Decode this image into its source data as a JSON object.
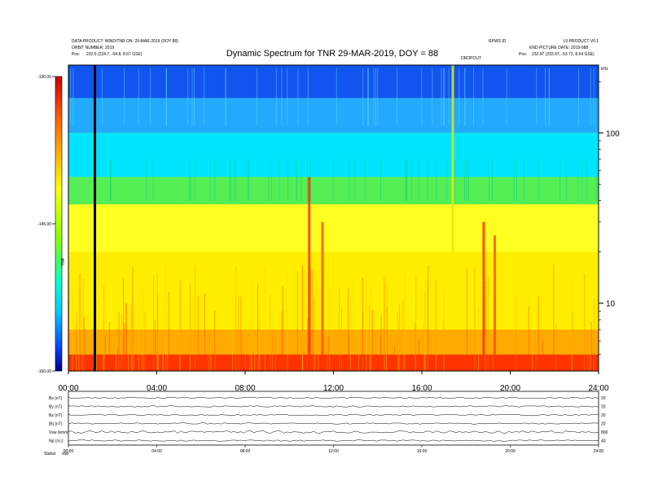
{
  "header": {
    "title": "Dynamic Spectrum for TNR 29-MAR-2019, DOY = 88",
    "left_line1": "DATA PRODUCT: WIND/TNR ON: 29-MAR-2019 (DOY 88)",
    "left_line2": "ORBIT NUMBER: 2019",
    "left_pos_label": "Pos:",
    "left_pos_value": "232.5 (224.7, -54.8, 8.67 GSE)",
    "right_line1": "RPWS ID",
    "right_line2": "L0 PRODUCT V0.1",
    "right_line3": "END PICTURE DATE: 2019-088",
    "right_pos_label": "Pos:",
    "right_pos_value": "232.97 (233.97, -53.72, 8.54 GSE)",
    "event_label": "DROPOUT",
    "khz_label": "kHz"
  },
  "chart_data": {
    "type": "heatmap",
    "title": "Dynamic Spectrum for TNR 29-MAR-2019, DOY = 88",
    "x_tick_labels": [
      "00:00",
      "04:00",
      "08:00",
      "12:00",
      "16:00",
      "20:00",
      "24:00"
    ],
    "x_ticks_hours": [
      0,
      4,
      8,
      12,
      16,
      20,
      24
    ],
    "xlim_hours": [
      0,
      24
    ],
    "y_scale": "log",
    "y_unit": "kHz",
    "y_tick_labels": [
      "10",
      "100"
    ],
    "y_ticks": [
      10,
      100
    ],
    "ylim": [
      4,
      250
    ],
    "colorbar": {
      "label": "TNR",
      "tick_labels": [
        "-130.00",
        "-145.00",
        "-160.00"
      ],
      "ticks": [
        -130,
        -145,
        -160
      ],
      "range": [
        -160,
        -130
      ],
      "colors": [
        "#0000aa",
        "#0044ff",
        "#00e0ff",
        "#00ff66",
        "#ffff00",
        "#ff9900",
        "#ff0000"
      ]
    },
    "background_bands": [
      {
        "f_low": 160,
        "f_high": 250,
        "level": -137,
        "color": "#1155ee"
      },
      {
        "f_low": 100,
        "f_high": 160,
        "level": -140,
        "color": "#22aaff"
      },
      {
        "f_low": 55,
        "f_high": 100,
        "level": -142,
        "color": "#00e5ff"
      },
      {
        "f_low": 38,
        "f_high": 55,
        "level": -145,
        "color": "#55ee55"
      },
      {
        "f_low": 20,
        "f_high": 38,
        "level": -148,
        "color": "#ffff22"
      },
      {
        "f_low": 7,
        "f_high": 20,
        "level": -150,
        "color": "#ffee00"
      },
      {
        "f_low": 5,
        "f_high": 7,
        "level": -152,
        "color": "#ffaa00"
      },
      {
        "f_low": 4,
        "f_high": 5,
        "level": -155,
        "color": "#ff3300"
      }
    ],
    "bursts": [
      {
        "hour": 10.9,
        "f_low": 5,
        "f_high": 55,
        "color": "#ff3300"
      },
      {
        "hour": 11.5,
        "f_low": 5,
        "f_high": 30,
        "color": "#ff5500"
      },
      {
        "hour": 17.4,
        "f_low": 20,
        "f_high": 250,
        "color": "#ddee00"
      },
      {
        "hour": 18.8,
        "f_low": 5,
        "f_high": 30,
        "color": "#ff3300"
      },
      {
        "hour": 19.3,
        "f_low": 5,
        "f_high": 25,
        "color": "#ff5500"
      }
    ],
    "data_gap_hour": 1.2
  },
  "housekeeping": {
    "panel_labels": [
      "Bx (nT)",
      "By (nT)",
      "Bz (nT)",
      "|B| (nT)",
      "Vsw (km/s)",
      "Np (/cc)"
    ],
    "right_labels": [
      "20",
      "20",
      "20",
      "20",
      "800",
      "40"
    ],
    "status_label": "Status:",
    "status_value": "stat",
    "x_tick_labels": [
      "00:00",
      "04:00",
      "08:00",
      "12:00",
      "16:00",
      "20:00",
      "24:00"
    ]
  }
}
